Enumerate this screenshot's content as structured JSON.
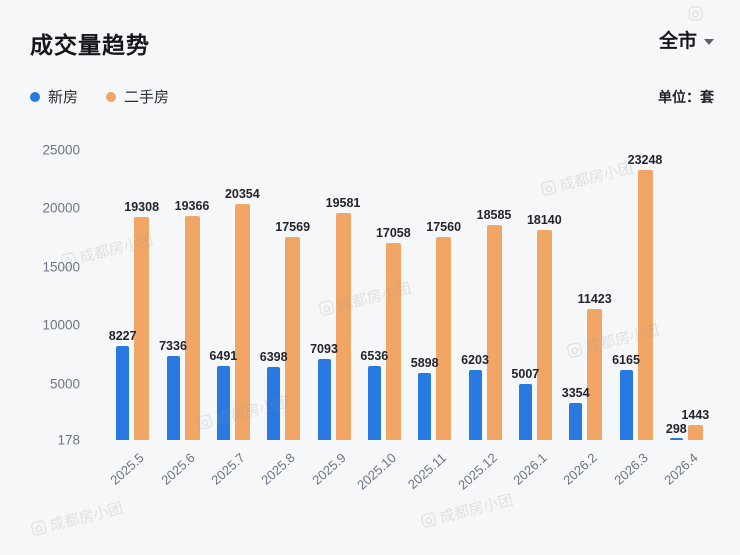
{
  "header": {
    "title": "成交量趋势",
    "region_selector": "全市",
    "unit_label": "单位：套"
  },
  "watermark": {
    "text": "成都房小团"
  },
  "chart_data": {
    "type": "bar",
    "title": "成交量趋势",
    "categories": [
      "2025.5",
      "2025.6",
      "2025.7",
      "2025.8",
      "2025.9",
      "2025.10",
      "2025.11",
      "2025.12",
      "2026.1",
      "2026.2",
      "2026.3",
      "2026.4"
    ],
    "series": [
      {
        "name": "新房",
        "color": "#2979e2",
        "values": [
          8227,
          7336,
          6491,
          6398,
          7093,
          6536,
          5898,
          6203,
          5007,
          3354,
          6165,
          298
        ]
      },
      {
        "name": "二手房",
        "color": "#f2a666",
        "values": [
          19308,
          19366,
          20354,
          17569,
          19581,
          17058,
          17560,
          18585,
          18140,
          11423,
          23248,
          1443
        ]
      }
    ],
    "y_ticks": [
      25000,
      20000,
      15000,
      10000,
      5000,
      178
    ],
    "ylim": [
      178,
      25000
    ],
    "xlabel": "",
    "ylabel": "",
    "grid": false,
    "legend_position": "top-left",
    "data_labels": true
  }
}
